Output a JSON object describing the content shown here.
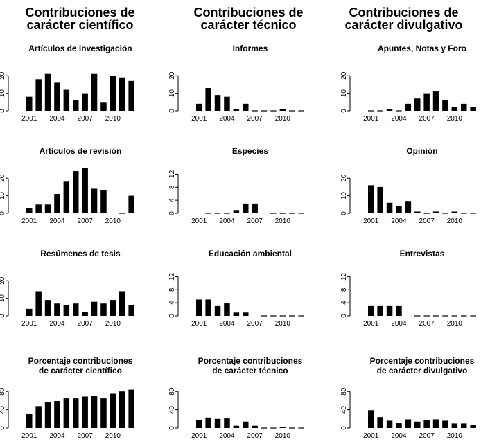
{
  "column_titles": [
    {
      "line1": "Contribuciones de",
      "line2": "carácter científico"
    },
    {
      "line1": "Contribuciones de",
      "line2": "carácter técnico"
    },
    {
      "line1": "Contribuciones de",
      "line2": "carácter divulgativo"
    }
  ],
  "chart_data": [
    {
      "type": "bar",
      "title": "Artículos de investigación",
      "years": [
        2001,
        2002,
        2003,
        2004,
        2005,
        2006,
        2007,
        2008,
        2009,
        2010,
        2011,
        2012
      ],
      "values": [
        8,
        18,
        21,
        16,
        12,
        6,
        10,
        21,
        5,
        20,
        19,
        17
      ],
      "xticks": [
        "2001",
        "2004",
        "2007",
        "2010"
      ],
      "yticks": [
        0,
        10,
        20
      ],
      "ylim": [
        0,
        26
      ]
    },
    {
      "type": "bar",
      "title": "Informes",
      "years": [
        2001,
        2002,
        2003,
        2004,
        2005,
        2006,
        2007,
        2008,
        2009,
        2010,
        2011,
        2012
      ],
      "values": [
        4,
        13,
        9,
        8,
        1,
        4,
        0,
        0,
        0,
        1,
        0,
        0
      ],
      "xticks": [
        "2001",
        "2004",
        "2007",
        "2010"
      ],
      "yticks": [
        0,
        10,
        20
      ],
      "ylim": [
        0,
        26
      ]
    },
    {
      "type": "bar",
      "title": "Apuntes, Notas y Foro",
      "years": [
        2001,
        2002,
        2003,
        2004,
        2005,
        2006,
        2007,
        2008,
        2009,
        2010,
        2011,
        2012
      ],
      "values": [
        0,
        0,
        1,
        0,
        4,
        7,
        10,
        11,
        6,
        2,
        4,
        2
      ],
      "xticks": [
        "2001",
        "2004",
        "2007",
        "2010"
      ],
      "yticks": [
        0,
        10,
        20
      ],
      "ylim": [
        0,
        26
      ]
    },
    {
      "type": "bar",
      "title": "Artículos de revisión",
      "years": [
        2001,
        2002,
        2003,
        2004,
        2005,
        2006,
        2007,
        2008,
        2009,
        2010,
        2011,
        2012
      ],
      "values": [
        3,
        5,
        5,
        11,
        18,
        24,
        26,
        14,
        13,
        null,
        0,
        10
      ],
      "xticks": [
        "2001",
        "2004",
        "2007",
        "2010"
      ],
      "yticks": [
        0,
        10,
        20
      ],
      "ylim": [
        0,
        26
      ]
    },
    {
      "type": "bar",
      "title": "Especies",
      "years": [
        2001,
        2002,
        2003,
        2004,
        2005,
        2006,
        2007,
        2008,
        2009,
        2010,
        2011,
        2012
      ],
      "values": [
        null,
        0,
        0,
        0,
        1,
        3,
        3,
        null,
        0,
        0,
        0,
        0
      ],
      "xticks": [
        "2001",
        "2004",
        "2007",
        "2010"
      ],
      "yticks": [
        0,
        4,
        8,
        12
      ],
      "ylim": [
        0,
        14
      ]
    },
    {
      "type": "bar",
      "title": "Opinión",
      "years": [
        2001,
        2002,
        2003,
        2004,
        2005,
        2006,
        2007,
        2008,
        2009,
        2010,
        2011,
        2012
      ],
      "values": [
        16,
        15,
        6,
        4,
        7,
        1,
        0,
        1,
        0,
        1,
        0,
        0
      ],
      "xticks": [
        "2001",
        "2004",
        "2007",
        "2010"
      ],
      "yticks": [
        0,
        10,
        20
      ],
      "ylim": [
        0,
        26
      ]
    },
    {
      "type": "bar",
      "title": "Resúmenes de tesis",
      "years": [
        2001,
        2002,
        2003,
        2004,
        2005,
        2006,
        2007,
        2008,
        2009,
        2010,
        2011,
        2012
      ],
      "values": [
        4,
        14,
        9,
        7,
        6,
        7,
        2,
        8,
        7,
        9,
        14,
        6
      ],
      "xticks": [
        "2001",
        "2004",
        "2007",
        "2010"
      ],
      "yticks": [
        0,
        10,
        20
      ],
      "ylim": [
        0,
        26
      ]
    },
    {
      "type": "bar",
      "title": "Educación ambiental",
      "years": [
        2001,
        2002,
        2003,
        2004,
        2005,
        2006,
        2007,
        2008,
        2009,
        2010,
        2011,
        2012
      ],
      "values": [
        5,
        5,
        3,
        4,
        1,
        1,
        null,
        0,
        0,
        0,
        0,
        0
      ],
      "xticks": [
        "2001",
        "2004",
        "2007",
        "2010"
      ],
      "yticks": [
        0,
        4,
        8,
        12
      ],
      "ylim": [
        0,
        14
      ]
    },
    {
      "type": "bar",
      "title": "Entrevistas",
      "years": [
        2001,
        2002,
        2003,
        2004,
        2005,
        2006,
        2007,
        2008,
        2009,
        2010,
        2011,
        2012
      ],
      "values": [
        3,
        3,
        3,
        3,
        null,
        0,
        0,
        0,
        0,
        0,
        0,
        0
      ],
      "xticks": [
        "2001",
        "2004",
        "2007",
        "2010"
      ],
      "yticks": [
        0,
        4,
        8,
        12
      ],
      "ylim": [
        0,
        14
      ]
    },
    {
      "type": "bar",
      "title": "Porcentaje contribuciones\nde carácter científico",
      "years": [
        2001,
        2002,
        2003,
        2004,
        2005,
        2006,
        2007,
        2008,
        2009,
        2010,
        2011,
        2012
      ],
      "values": [
        31,
        48,
        56,
        59,
        65,
        65,
        69,
        71,
        65,
        75,
        80,
        84
      ],
      "xticks": [
        "2001",
        "2004",
        "2007",
        "2010"
      ],
      "yticks": [
        0,
        40,
        80
      ],
      "ylim": [
        0,
        100
      ]
    },
    {
      "type": "bar",
      "title": "Porcentaje contribuciones\nde carácter técnico",
      "years": [
        2001,
        2002,
        2003,
        2004,
        2005,
        2006,
        2007,
        2008,
        2009,
        2010,
        2011,
        2012
      ],
      "values": [
        18,
        23,
        20,
        21,
        5,
        14,
        5,
        0,
        0,
        3,
        0,
        0
      ],
      "xticks": [
        "2001",
        "2004",
        "2007",
        "2010"
      ],
      "yticks": [
        0,
        40,
        80
      ],
      "ylim": [
        0,
        100
      ]
    },
    {
      "type": "bar",
      "title": "Porcentaje contribuciones\nde carácter divulgativo",
      "years": [
        2001,
        2002,
        2003,
        2004,
        2005,
        2006,
        2007,
        2008,
        2009,
        2010,
        2011,
        2012
      ],
      "values": [
        39,
        24,
        16,
        12,
        19,
        14,
        18,
        19,
        16,
        10,
        10,
        6
      ],
      "xticks": [
        "2001",
        "2004",
        "2007",
        "2010"
      ],
      "yticks": [
        0,
        40,
        80
      ],
      "ylim": [
        0,
        100
      ]
    }
  ]
}
